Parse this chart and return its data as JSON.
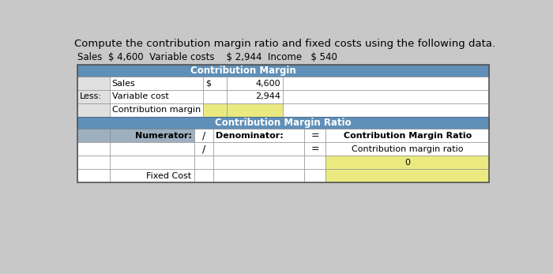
{
  "title": "Compute the contribution margin ratio and fixed costs using the following data.",
  "subtitle": "Sales  $ 4,600  Variable costs    $ 2,944  Income   $ 540",
  "bg_color": "#c8c8c8",
  "header_blue": "#6090b8",
  "gray_cell": "#9eafc0",
  "yellow": "#eaea80",
  "white": "#ffffff",
  "light_gray": "#e0e0e0",
  "dark_blue": "#4a7090",
  "section1_header": "Contribution Margin",
  "section2_header": "Contribution Margin Ratio",
  "title_fontsize": 10,
  "subtitle_fontsize": 9
}
